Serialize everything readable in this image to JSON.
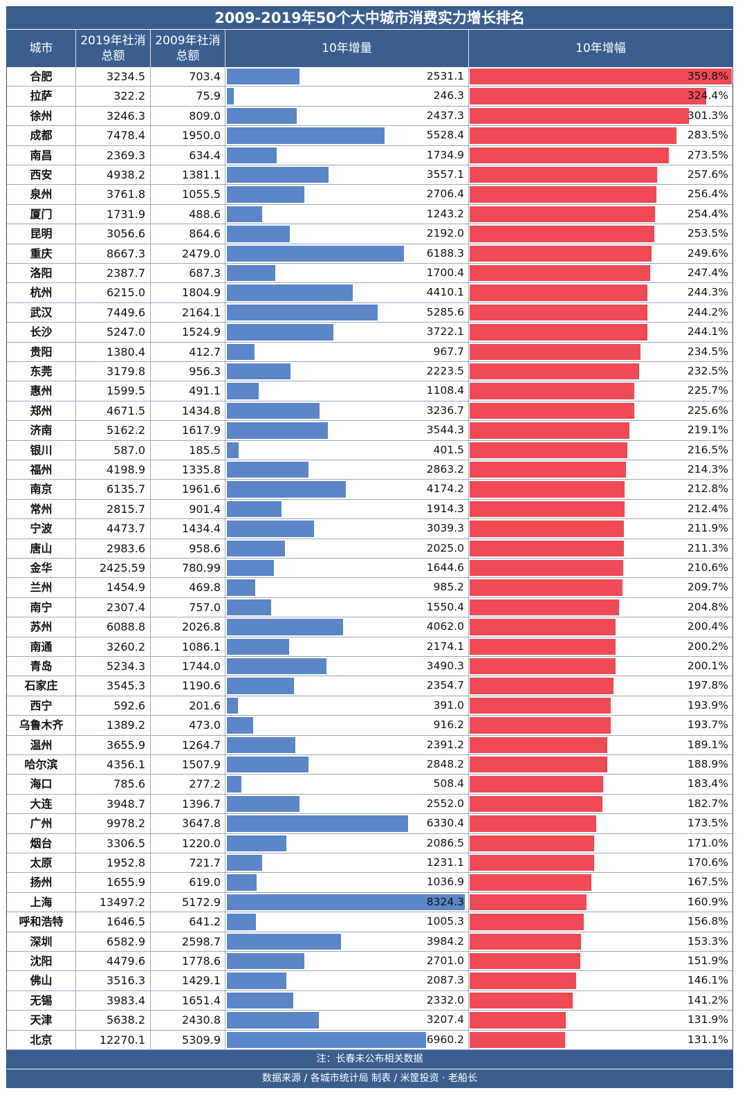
{
  "title": "2009-2019年50个大中城市消费实力增长排名",
  "header": {
    "city": "城市",
    "v2019_line1": "2019年社消",
    "v2019_line2": "总额",
    "v2009_line1": "2009年社消",
    "v2009_line2": "总额",
    "increase": "10年增量",
    "growth": "10年增幅"
  },
  "note": "注：长春未公布相关数据",
  "footer": "数据来源 / 各城市统计局  制表 / 米筐投资 · 老船长",
  "colors": {
    "header_bg": "#3a5f8f",
    "increase_bar": "#5b86c8",
    "growth_bar": "#f04a55"
  },
  "chart_data": {
    "type": "table",
    "title": "2009-2019年50个大中城市消费实力增长排名",
    "columns": [
      "城市",
      "2019年社消总额",
      "2009年社消总额",
      "10年增量",
      "10年增幅"
    ],
    "increase_max": 8324.3,
    "growth_max": 359.8,
    "rows": [
      {
        "city": "合肥",
        "v2019": "3234.5",
        "v2009": "703.4",
        "inc": "2531.1",
        "gro": "359.8%"
      },
      {
        "city": "拉萨",
        "v2019": "322.2",
        "v2009": "75.9",
        "inc": "246.3",
        "gro": "324.4%"
      },
      {
        "city": "徐州",
        "v2019": "3246.3",
        "v2009": "809.0",
        "inc": "2437.3",
        "gro": "301.3%"
      },
      {
        "city": "成都",
        "v2019": "7478.4",
        "v2009": "1950.0",
        "inc": "5528.4",
        "gro": "283.5%"
      },
      {
        "city": "南昌",
        "v2019": "2369.3",
        "v2009": "634.4",
        "inc": "1734.9",
        "gro": "273.5%"
      },
      {
        "city": "西安",
        "v2019": "4938.2",
        "v2009": "1381.1",
        "inc": "3557.1",
        "gro": "257.6%"
      },
      {
        "city": "泉州",
        "v2019": "3761.8",
        "v2009": "1055.5",
        "inc": "2706.4",
        "gro": "256.4%"
      },
      {
        "city": "厦门",
        "v2019": "1731.9",
        "v2009": "488.6",
        "inc": "1243.2",
        "gro": "254.4%"
      },
      {
        "city": "昆明",
        "v2019": "3056.6",
        "v2009": "864.6",
        "inc": "2192.0",
        "gro": "253.5%"
      },
      {
        "city": "重庆",
        "v2019": "8667.3",
        "v2009": "2479.0",
        "inc": "6188.3",
        "gro": "249.6%"
      },
      {
        "city": "洛阳",
        "v2019": "2387.7",
        "v2009": "687.3",
        "inc": "1700.4",
        "gro": "247.4%"
      },
      {
        "city": "杭州",
        "v2019": "6215.0",
        "v2009": "1804.9",
        "inc": "4410.1",
        "gro": "244.3%"
      },
      {
        "city": "武汉",
        "v2019": "7449.6",
        "v2009": "2164.1",
        "inc": "5285.6",
        "gro": "244.2%"
      },
      {
        "city": "长沙",
        "v2019": "5247.0",
        "v2009": "1524.9",
        "inc": "3722.1",
        "gro": "244.1%"
      },
      {
        "city": "贵阳",
        "v2019": "1380.4",
        "v2009": "412.7",
        "inc": "967.7",
        "gro": "234.5%"
      },
      {
        "city": "东莞",
        "v2019": "3179.8",
        "v2009": "956.3",
        "inc": "2223.5",
        "gro": "232.5%"
      },
      {
        "city": "惠州",
        "v2019": "1599.5",
        "v2009": "491.1",
        "inc": "1108.4",
        "gro": "225.7%"
      },
      {
        "city": "郑州",
        "v2019": "4671.5",
        "v2009": "1434.8",
        "inc": "3236.7",
        "gro": "225.6%"
      },
      {
        "city": "济南",
        "v2019": "5162.2",
        "v2009": "1617.9",
        "inc": "3544.3",
        "gro": "219.1%"
      },
      {
        "city": "银川",
        "v2019": "587.0",
        "v2009": "185.5",
        "inc": "401.5",
        "gro": "216.5%"
      },
      {
        "city": "福州",
        "v2019": "4198.9",
        "v2009": "1335.8",
        "inc": "2863.2",
        "gro": "214.3%"
      },
      {
        "city": "南京",
        "v2019": "6135.7",
        "v2009": "1961.6",
        "inc": "4174.2",
        "gro": "212.8%"
      },
      {
        "city": "常州",
        "v2019": "2815.7",
        "v2009": "901.4",
        "inc": "1914.3",
        "gro": "212.4%"
      },
      {
        "city": "宁波",
        "v2019": "4473.7",
        "v2009": "1434.4",
        "inc": "3039.3",
        "gro": "211.9%"
      },
      {
        "city": "唐山",
        "v2019": "2983.6",
        "v2009": "958.6",
        "inc": "2025.0",
        "gro": "211.3%"
      },
      {
        "city": "金华",
        "v2019": "2425.59",
        "v2009": "780.99",
        "inc": "1644.6",
        "gro": "210.6%"
      },
      {
        "city": "兰州",
        "v2019": "1454.9",
        "v2009": "469.8",
        "inc": "985.2",
        "gro": "209.7%"
      },
      {
        "city": "南宁",
        "v2019": "2307.4",
        "v2009": "757.0",
        "inc": "1550.4",
        "gro": "204.8%"
      },
      {
        "city": "苏州",
        "v2019": "6088.8",
        "v2009": "2026.8",
        "inc": "4062.0",
        "gro": "200.4%"
      },
      {
        "city": "南通",
        "v2019": "3260.2",
        "v2009": "1086.1",
        "inc": "2174.1",
        "gro": "200.2%"
      },
      {
        "city": "青岛",
        "v2019": "5234.3",
        "v2009": "1744.0",
        "inc": "3490.3",
        "gro": "200.1%"
      },
      {
        "city": "石家庄",
        "v2019": "3545.3",
        "v2009": "1190.6",
        "inc": "2354.7",
        "gro": "197.8%"
      },
      {
        "city": "西宁",
        "v2019": "592.6",
        "v2009": "201.6",
        "inc": "391.0",
        "gro": "193.9%"
      },
      {
        "city": "乌鲁木齐",
        "v2019": "1389.2",
        "v2009": "473.0",
        "inc": "916.2",
        "gro": "193.7%"
      },
      {
        "city": "温州",
        "v2019": "3655.9",
        "v2009": "1264.7",
        "inc": "2391.2",
        "gro": "189.1%"
      },
      {
        "city": "哈尔滨",
        "v2019": "4356.1",
        "v2009": "1507.9",
        "inc": "2848.2",
        "gro": "188.9%"
      },
      {
        "city": "海口",
        "v2019": "785.6",
        "v2009": "277.2",
        "inc": "508.4",
        "gro": "183.4%"
      },
      {
        "city": "大连",
        "v2019": "3948.7",
        "v2009": "1396.7",
        "inc": "2552.0",
        "gro": "182.7%"
      },
      {
        "city": "广州",
        "v2019": "9978.2",
        "v2009": "3647.8",
        "inc": "6330.4",
        "gro": "173.5%"
      },
      {
        "city": "烟台",
        "v2019": "3306.5",
        "v2009": "1220.0",
        "inc": "2086.5",
        "gro": "171.0%"
      },
      {
        "city": "太原",
        "v2019": "1952.8",
        "v2009": "721.7",
        "inc": "1231.1",
        "gro": "170.6%"
      },
      {
        "city": "扬州",
        "v2019": "1655.9",
        "v2009": "619.0",
        "inc": "1036.9",
        "gro": "167.5%"
      },
      {
        "city": "上海",
        "v2019": "13497.2",
        "v2009": "5172.9",
        "inc": "8324.3",
        "gro": "160.9%"
      },
      {
        "city": "呼和浩特",
        "v2019": "1646.5",
        "v2009": "641.2",
        "inc": "1005.3",
        "gro": "156.8%"
      },
      {
        "city": "深圳",
        "v2019": "6582.9",
        "v2009": "2598.7",
        "inc": "3984.2",
        "gro": "153.3%"
      },
      {
        "city": "沈阳",
        "v2019": "4479.6",
        "v2009": "1778.6",
        "inc": "2701.0",
        "gro": "151.9%"
      },
      {
        "city": "佛山",
        "v2019": "3516.3",
        "v2009": "1429.1",
        "inc": "2087.3",
        "gro": "146.1%"
      },
      {
        "city": "无锡",
        "v2019": "3983.4",
        "v2009": "1651.4",
        "inc": "2332.0",
        "gro": "141.2%"
      },
      {
        "city": "天津",
        "v2019": "5638.2",
        "v2009": "2430.8",
        "inc": "3207.4",
        "gro": "131.9%"
      },
      {
        "city": "北京",
        "v2019": "12270.1",
        "v2009": "5309.9",
        "inc": "6960.2",
        "gro": "131.1%"
      }
    ]
  }
}
